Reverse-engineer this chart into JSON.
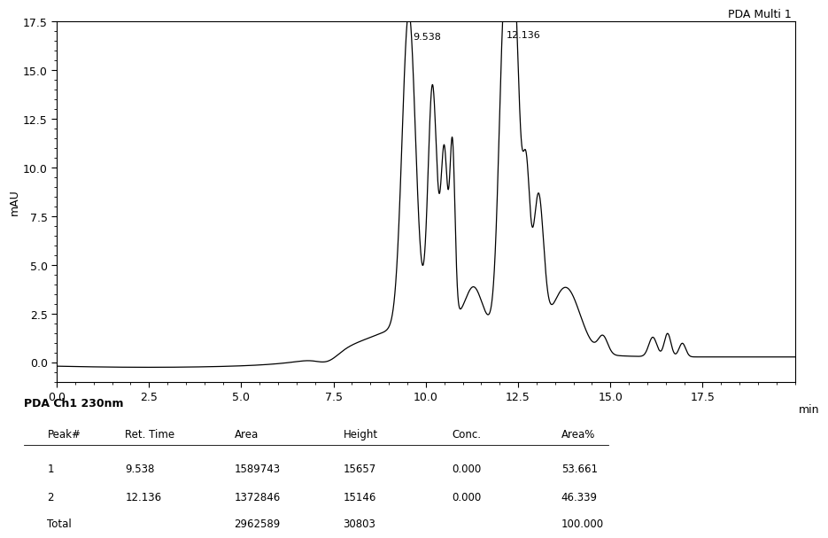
{
  "title": "PDA Multi 1",
  "ylabel": "mAU",
  "xlabel": "min",
  "xlim": [
    0.0,
    20.0
  ],
  "ylim": [
    -1.0,
    17.5
  ],
  "yticks": [
    0.0,
    2.5,
    5.0,
    7.5,
    10.0,
    12.5,
    15.0,
    17.5
  ],
  "xticks": [
    0.0,
    2.5,
    5.0,
    7.5,
    10.0,
    12.5,
    15.0,
    17.5
  ],
  "peak1_rt": 9.538,
  "peak2_rt": 12.136,
  "table_title": "PDA Ch1 230nm",
  "table_headers": [
    "Peak#",
    "Ret. Time",
    "Area",
    "Height",
    "Conc.",
    "Area%"
  ],
  "table_rows": [
    [
      "1",
      "9.538",
      "1589743",
      "15657",
      "0.000",
      "53.661"
    ],
    [
      "2",
      "12.136",
      "1372846",
      "15146",
      "0.000",
      "46.339"
    ],
    [
      "Total",
      "",
      "2962589",
      "30803",
      "",
      "100.000"
    ]
  ],
  "line_color": "#000000",
  "background_color": "#ffffff"
}
